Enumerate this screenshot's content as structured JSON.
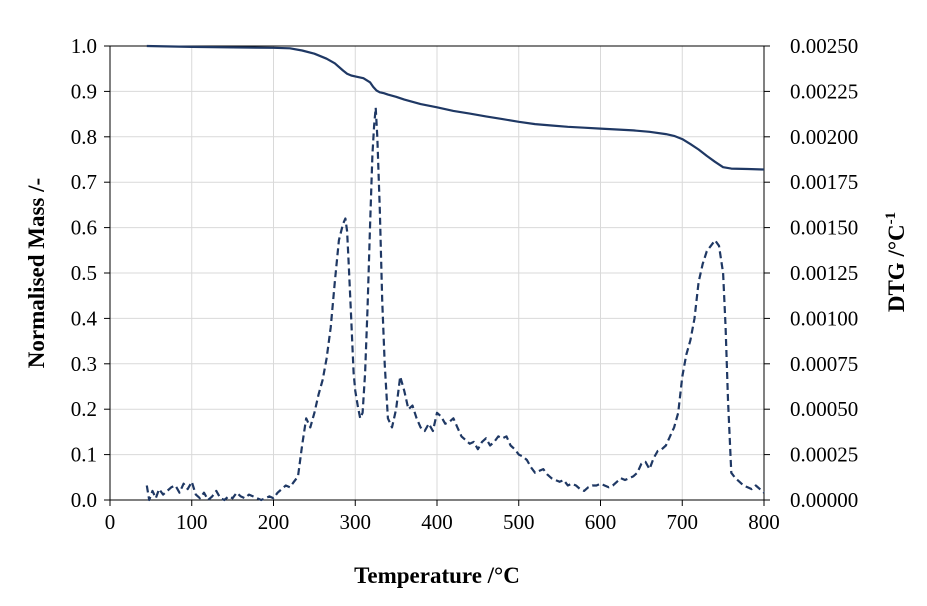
{
  "chart_data": {
    "type": "line",
    "xlabel": "Temperature /°C",
    "ylabel_left": "Normalised Mass /-",
    "ylabel_right": "DTG  /°C",
    "ylabel_right_superscript": "-1",
    "xlim": [
      0,
      800
    ],
    "ylim_left": [
      0,
      1.0
    ],
    "ylim_right": [
      0,
      0.0025
    ],
    "x_ticks": [
      "0",
      "100",
      "200",
      "300",
      "400",
      "500",
      "600",
      "700",
      "800"
    ],
    "y_left_ticks": [
      "0.0",
      "0.1",
      "0.2",
      "0.3",
      "0.4",
      "0.5",
      "0.6",
      "0.7",
      "0.8",
      "0.9",
      "1.0"
    ],
    "y_right_ticks": [
      "0.00000",
      "0.00025",
      "0.00050",
      "0.00075",
      "0.00100",
      "0.00125",
      "0.00150",
      "0.00175",
      "0.00200",
      "0.00225",
      "0.00250"
    ],
    "grid": true,
    "line_color": "#1f3864",
    "series": [
      {
        "name": "Normalised Mass",
        "axis": "left",
        "style": "solid",
        "x": [
          45,
          100,
          150,
          200,
          220,
          235,
          250,
          265,
          275,
          285,
          290,
          295,
          300,
          305,
          310,
          318,
          322,
          326,
          330,
          335,
          340,
          350,
          360,
          380,
          400,
          420,
          440,
          460,
          480,
          500,
          520,
          540,
          560,
          580,
          600,
          620,
          640,
          660,
          680,
          690,
          700,
          710,
          720,
          730,
          740,
          750,
          760,
          780,
          800
        ],
        "y": [
          1.0,
          0.998,
          0.997,
          0.996,
          0.995,
          0.99,
          0.983,
          0.972,
          0.962,
          0.946,
          0.939,
          0.935,
          0.933,
          0.931,
          0.929,
          0.92,
          0.91,
          0.902,
          0.898,
          0.896,
          0.893,
          0.888,
          0.882,
          0.872,
          0.865,
          0.857,
          0.851,
          0.845,
          0.839,
          0.833,
          0.828,
          0.825,
          0.822,
          0.82,
          0.818,
          0.816,
          0.814,
          0.811,
          0.806,
          0.802,
          0.795,
          0.784,
          0.772,
          0.758,
          0.745,
          0.733,
          0.73,
          0.729,
          0.728
        ]
      },
      {
        "name": "DTG",
        "axis": "right",
        "style": "dashed",
        "x": [
          45,
          48,
          52,
          56,
          60,
          65,
          70,
          75,
          80,
          85,
          90,
          95,
          100,
          105,
          110,
          115,
          120,
          125,
          130,
          135,
          140,
          145,
          150,
          155,
          160,
          165,
          170,
          175,
          180,
          185,
          190,
          195,
          200,
          205,
          210,
          215,
          220,
          225,
          230,
          235,
          240,
          245,
          250,
          255,
          260,
          265,
          270,
          275,
          280,
          285,
          288,
          290,
          292,
          295,
          298,
          300,
          303,
          306,
          309,
          312,
          315,
          318,
          321,
          323,
          325,
          327,
          330,
          333,
          336,
          340,
          345,
          350,
          355,
          360,
          365,
          370,
          375,
          380,
          385,
          390,
          395,
          400,
          405,
          410,
          415,
          420,
          425,
          430,
          435,
          440,
          445,
          450,
          455,
          460,
          465,
          470,
          475,
          480,
          485,
          490,
          495,
          500,
          505,
          510,
          515,
          520,
          525,
          530,
          535,
          540,
          545,
          550,
          555,
          560,
          565,
          570,
          575,
          580,
          585,
          590,
          595,
          600,
          605,
          610,
          615,
          620,
          625,
          630,
          635,
          640,
          645,
          650,
          655,
          660,
          665,
          670,
          675,
          680,
          685,
          690,
          695,
          700,
          705,
          710,
          715,
          720,
          725,
          730,
          735,
          740,
          745,
          750,
          753,
          756,
          760,
          765,
          770,
          775,
          780,
          785,
          790,
          795,
          800
        ],
        "y": [
          8e-05,
          0.0,
          5e-05,
          1e-05,
          6e-05,
          3e-05,
          5e-05,
          7e-05,
          8e-05,
          4e-05,
          9e-05,
          6e-05,
          0.0001,
          3e-05,
          1e-05,
          4e-05,
          0.0,
          2e-05,
          5e-05,
          1e-05,
          0.0,
          2e-05,
          1e-05,
          4e-05,
          2e-05,
          1e-05,
          3e-05,
          2e-05,
          1e-05,
          0.0,
          1e-05,
          2e-05,
          1e-05,
          4e-05,
          6e-05,
          8e-05,
          7e-05,
          0.0001,
          0.00013,
          0.0003,
          0.00045,
          0.0004,
          0.00048,
          0.00058,
          0.00066,
          0.00078,
          0.00095,
          0.0012,
          0.00143,
          0.00152,
          0.00155,
          0.00148,
          0.0013,
          0.001,
          0.0007,
          0.0006,
          0.00052,
          0.00045,
          0.00048,
          0.0007,
          0.00105,
          0.0015,
          0.0019,
          0.00206,
          0.00216,
          0.002,
          0.0016,
          0.0011,
          0.00075,
          0.00045,
          0.0004,
          0.0005,
          0.00068,
          0.0006,
          0.0005,
          0.00052,
          0.00045,
          0.0004,
          0.00038,
          0.00042,
          0.00038,
          0.00048,
          0.00046,
          0.00042,
          0.00043,
          0.00045,
          0.0004,
          0.00035,
          0.00033,
          0.00031,
          0.00032,
          0.00028,
          0.00032,
          0.00034,
          0.0003,
          0.00032,
          0.00035,
          0.00034,
          0.00035,
          0.0003,
          0.00028,
          0.00025,
          0.00024,
          0.00022,
          0.00018,
          0.00015,
          0.00016,
          0.00017,
          0.00014,
          0.00012,
          0.00011,
          0.0001,
          0.00011,
          8e-05,
          9e-05,
          8e-05,
          6e-05,
          5e-05,
          7e-05,
          8e-05,
          8e-05,
          9e-05,
          8e-05,
          7e-05,
          8e-05,
          0.0001,
          0.00012,
          0.00011,
          0.00012,
          0.00013,
          0.00015,
          0.0002,
          0.00021,
          0.00017,
          0.00023,
          0.00027,
          0.00028,
          0.0003,
          0.00035,
          0.0004,
          0.00048,
          0.00068,
          0.0008,
          0.00088,
          0.001,
          0.0012,
          0.0013,
          0.00137,
          0.0014,
          0.00143,
          0.0014,
          0.00125,
          0.00095,
          0.00055,
          0.00015,
          0.00012,
          0.0001,
          8e-05,
          7e-05,
          6e-05,
          8e-05,
          6e-05,
          4e-05
        ]
      }
    ]
  }
}
